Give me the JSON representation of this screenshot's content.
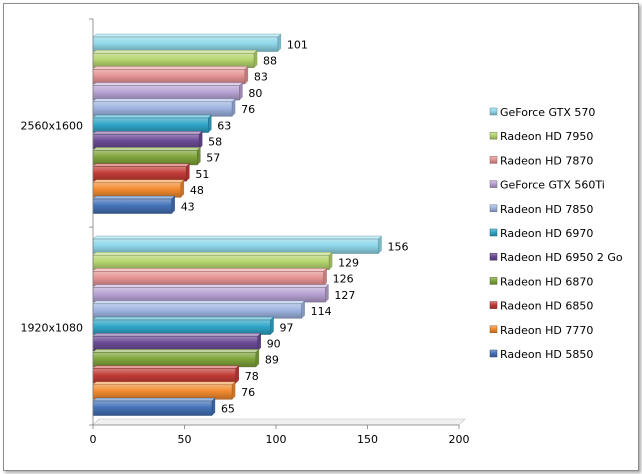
{
  "chart_data": {
    "type": "bar",
    "orientation": "horizontal",
    "title": "",
    "xlabel": "",
    "ylabel": "",
    "categories": [
      "2560x1600",
      "1920x1080"
    ],
    "xlim": [
      0,
      200
    ],
    "xticks": [
      0,
      50,
      100,
      150,
      200
    ],
    "grid": false,
    "legend": "right",
    "series": [
      {
        "name": "GeForce GTX 570",
        "color": "#8fd8ea",
        "values": [
          101,
          156
        ]
      },
      {
        "name": "Radeon HD 7950",
        "color": "#b5d56e",
        "values": [
          88,
          129
        ]
      },
      {
        "name": "Radeon HD 7870",
        "color": "#e59393",
        "values": [
          83,
          126
        ]
      },
      {
        "name": "GeForce GTX 560Ti",
        "color": "#b7a2d2",
        "values": [
          80,
          127
        ]
      },
      {
        "name": "Radeon HD 7850",
        "color": "#9db4e0",
        "values": [
          76,
          114
        ]
      },
      {
        "name": "Radeon HD 6970",
        "color": "#2fa6c8",
        "values": [
          63,
          97
        ]
      },
      {
        "name": "Radeon HD 6950 2 Go",
        "color": "#6a4a95",
        "values": [
          58,
          90
        ]
      },
      {
        "name": "Radeon HD 6870",
        "color": "#7fa53b",
        "values": [
          57,
          89
        ]
      },
      {
        "name": "Radeon HD 6850",
        "color": "#c23b36",
        "values": [
          51,
          78
        ]
      },
      {
        "name": "Radeon HD 7770",
        "color": "#f28a2e",
        "values": [
          48,
          76
        ]
      },
      {
        "name": "Radeon HD 5850",
        "color": "#4472b8",
        "values": [
          43,
          65
        ]
      }
    ]
  }
}
